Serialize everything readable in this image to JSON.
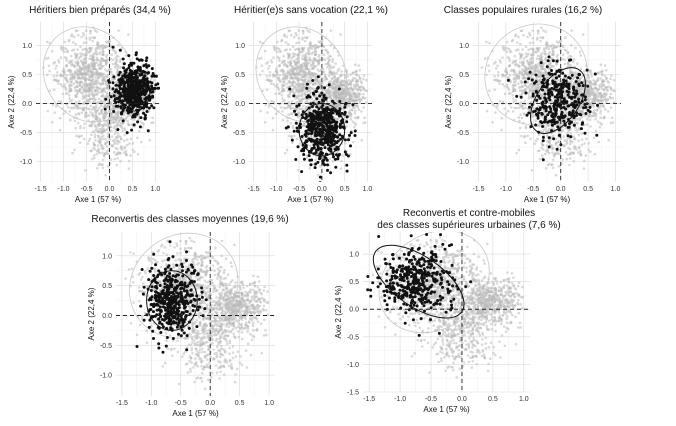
{
  "chart_data": [
    {
      "type": "scatter",
      "title": "Héritiers bien préparés (34,4 %)",
      "xlabel": "Axe 1 (57 %)",
      "ylabel": "Axe 2 (22,4 %)",
      "xlim": [
        -1.6,
        1.1
      ],
      "ylim": [
        -1.35,
        1.4
      ],
      "xticks": [
        "-1.5",
        "-1.0",
        "-0.5",
        "0.0",
        "0.5",
        "1.0"
      ],
      "yticks": [
        "1.0",
        "0.5",
        "0.0",
        "-0.5",
        "-1.0"
      ],
      "xtick_values": [
        -1.5,
        -1.0,
        -0.5,
        0.0,
        0.5,
        1.0
      ],
      "ytick_values": [
        1.0,
        0.5,
        0.0,
        -0.5,
        -1.0
      ],
      "grid": true,
      "background_color": "#b9b9b9",
      "highlight_color": "#111111",
      "group_cloud": {
        "center": [
          0.55,
          0.2
        ],
        "spread": [
          0.2,
          0.24
        ],
        "n": 520
      },
      "group_ellipse": {
        "center": [
          0.55,
          0.2
        ],
        "rx": 0.33,
        "ry": 0.33,
        "angle": 0
      }
    },
    {
      "type": "scatter",
      "title": "Héritier(e)s sans vocation (22,1 %)",
      "xlabel": "Axe 1 (57 %)",
      "ylabel": "Axe 2 (22,4 %)",
      "xlim": [
        -1.6,
        1.1
      ],
      "ylim": [
        -1.35,
        1.4
      ],
      "xticks": [
        "-1.5",
        "-1.0",
        "-0.5",
        "0.0",
        "0.5",
        "1.0"
      ],
      "yticks": [
        "1.0",
        "0.5",
        "0.0",
        "-0.5",
        "-1.0"
      ],
      "xtick_values": [
        -1.5,
        -1.0,
        -0.5,
        0.0,
        0.5,
        1.0
      ],
      "ytick_values": [
        1.0,
        0.5,
        0.0,
        -0.5,
        -1.0
      ],
      "grid": true,
      "background_color": "#b9b9b9",
      "highlight_color": "#111111",
      "group_cloud": {
        "center": [
          0.0,
          -0.45
        ],
        "spread": [
          0.26,
          0.28
        ],
        "n": 480
      },
      "group_ellipse": {
        "center": [
          0.0,
          -0.45
        ],
        "rx": 0.5,
        "ry": 0.45,
        "angle": 0
      }
    },
    {
      "type": "scatter",
      "title": "Classes populaires rurales (16,2 %)",
      "xlabel": "Axe 1 (57 %)",
      "ylabel": "Axe 2 (22,4 %)",
      "xlim": [
        -1.6,
        1.1
      ],
      "ylim": [
        -1.35,
        1.4
      ],
      "xticks": [
        "-1.5",
        "-1.0",
        "-0.5",
        "0.0",
        "0.5",
        "1.0"
      ],
      "yticks": [
        "1.0",
        "0.5",
        "0.0",
        "-0.5",
        "-1.0"
      ],
      "xtick_values": [
        -1.5,
        -1.0,
        -0.5,
        0.0,
        0.5,
        1.0
      ],
      "ytick_values": [
        1.0,
        0.5,
        0.0,
        -0.5,
        -1.0
      ],
      "grid": true,
      "background_color": "#b9b9b9",
      "highlight_color": "#111111",
      "group_cloud": {
        "center": [
          -0.05,
          0.05
        ],
        "spread": [
          0.26,
          0.3
        ],
        "n": 340
      },
      "group_ellipse": {
        "center": [
          -0.05,
          0.05
        ],
        "rx": 0.68,
        "ry": 0.36,
        "angle": 55
      }
    },
    {
      "type": "scatter",
      "title": "Reconvertis des classes moyennes (19,6 %)",
      "xlabel": "Axe 1 (57 %)",
      "ylabel": "Axe 2 (22,4 %)",
      "xlim": [
        -1.6,
        1.1
      ],
      "ylim": [
        -1.35,
        1.4
      ],
      "xticks": [
        "-1.5",
        "-1.0",
        "-0.5",
        "0.0",
        "0.5",
        "1.0"
      ],
      "yticks": [
        "1.0",
        "0.5",
        "0.0",
        "-0.5",
        "-1.0"
      ],
      "xtick_values": [
        -1.5,
        -1.0,
        -0.5,
        0.0,
        0.5,
        1.0
      ],
      "ytick_values": [
        1.0,
        0.5,
        0.0,
        -0.5,
        -1.0
      ],
      "grid": true,
      "background_color": "#b9b9b9",
      "highlight_color": "#111111",
      "group_cloud": {
        "center": [
          -0.65,
          0.25
        ],
        "spread": [
          0.2,
          0.3
        ],
        "n": 440
      },
      "group_ellipse": {
        "center": [
          -0.65,
          0.25
        ],
        "rx": 0.43,
        "ry": 0.5,
        "angle": 0
      }
    },
    {
      "type": "scatter",
      "title": "Reconvertis et contre-mobiles",
      "subtitle": "des classes supérieures urbaines (7,6 %)",
      "xlabel": "Axe 1 (57 %)",
      "ylabel": "Axe 2 (22,4 %)",
      "xlim": [
        -1.6,
        1.1
      ],
      "ylim": [
        -1.5,
        1.4
      ],
      "xticks": [
        "-1.5",
        "-1.0",
        "-0.5",
        "0.0",
        "0.5",
        "1.0"
      ],
      "yticks": [
        "1.0",
        "0.5",
        "0.0",
        "-0.5",
        "-1.0",
        "-1.5"
      ],
      "xtick_values": [
        -1.5,
        -1.0,
        -0.5,
        0.0,
        0.5,
        1.0
      ],
      "ytick_values": [
        1.0,
        0.5,
        0.0,
        -0.5,
        -1.0,
        -1.5
      ],
      "grid": true,
      "background_color": "#b9b9b9",
      "highlight_color": "#111111",
      "group_cloud": {
        "center": [
          -0.75,
          0.5
        ],
        "spread": [
          0.3,
          0.3
        ],
        "n": 380
      },
      "group_ellipse": {
        "center": [
          -0.7,
          0.5
        ],
        "rx": 0.85,
        "ry": 0.45,
        "angle": -35
      }
    }
  ]
}
